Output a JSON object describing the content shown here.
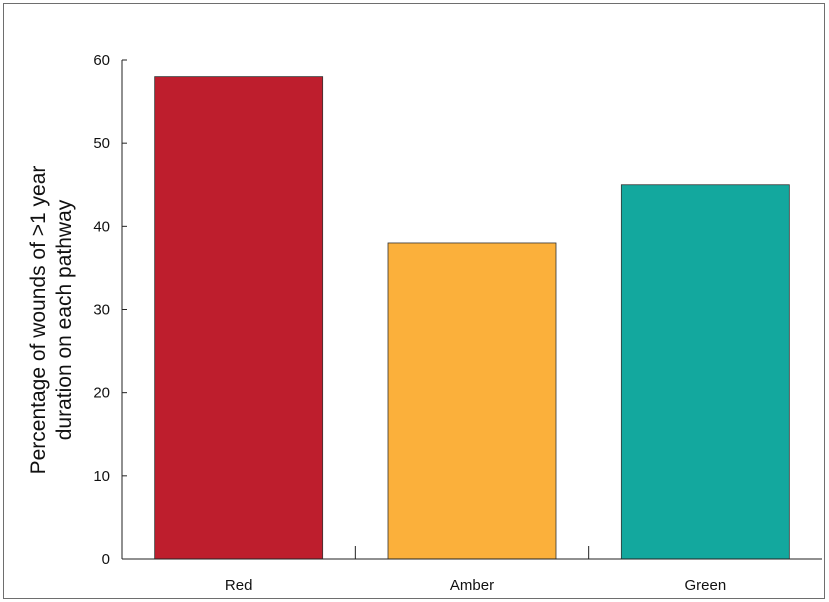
{
  "chart_data": {
    "type": "bar",
    "categories": [
      "Red",
      "Amber",
      "Green"
    ],
    "values": [
      58,
      38,
      45
    ],
    "colors": [
      "#be1e2d",
      "#fbb03b",
      "#13a89e"
    ],
    "title": "",
    "xlabel": "",
    "ylabel_lines": [
      "Percentage of wounds of >1 year",
      "duration on each pathway"
    ],
    "ylim": [
      0,
      60
    ],
    "yticks": [
      0,
      10,
      20,
      30,
      40,
      50,
      60
    ],
    "grid": false
  }
}
